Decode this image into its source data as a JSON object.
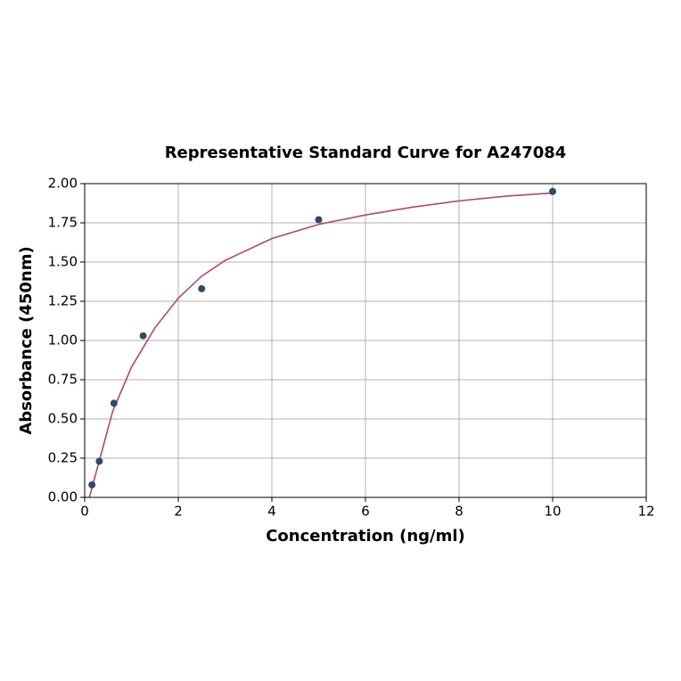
{
  "chart_data": {
    "type": "scatter",
    "title": "Representative Standard Curve for A247084",
    "x_label": "Concentration (ng/ml)",
    "y_label": "Absorbance (450nm)",
    "xlim": [
      0,
      12
    ],
    "xticks": [
      0,
      2,
      4,
      6,
      8,
      10,
      12
    ],
    "ylim": [
      0,
      2
    ],
    "yticks": [
      {
        "value": 0,
        "label": "0.00"
      },
      {
        "value": 0.25,
        "label": "0.25"
      },
      {
        "value": 0.5,
        "label": "0.50"
      },
      {
        "value": 0.75,
        "label": "0.75"
      },
      {
        "value": 1,
        "label": "1.00"
      },
      {
        "value": 1.25,
        "label": "1.25"
      },
      {
        "value": 1.5,
        "label": "1.50"
      },
      {
        "value": 1.75,
        "label": "1.75"
      },
      {
        "value": 2,
        "label": "2.00"
      }
    ],
    "grid": true,
    "series": [
      {
        "style": "markers",
        "color": "#2e4a6b",
        "x": [
          0.156,
          0.312,
          0.625,
          1.25,
          2.5,
          5,
          10
        ],
        "values": [
          0.08,
          0.23,
          0.6,
          1.03,
          1.33,
          1.77,
          1.95
        ]
      },
      {
        "style": "line",
        "color": "#b5476a",
        "x": [
          0.1,
          0.3,
          0.6,
          1,
          1.5,
          2,
          2.5,
          3,
          4,
          5,
          6,
          7,
          8,
          9,
          10
        ],
        "values": [
          0,
          0.22,
          0.55,
          0.83,
          1.08,
          1.27,
          1.41,
          1.51,
          1.65,
          1.74,
          1.8,
          1.85,
          1.89,
          1.92,
          1.94
        ]
      }
    ]
  }
}
